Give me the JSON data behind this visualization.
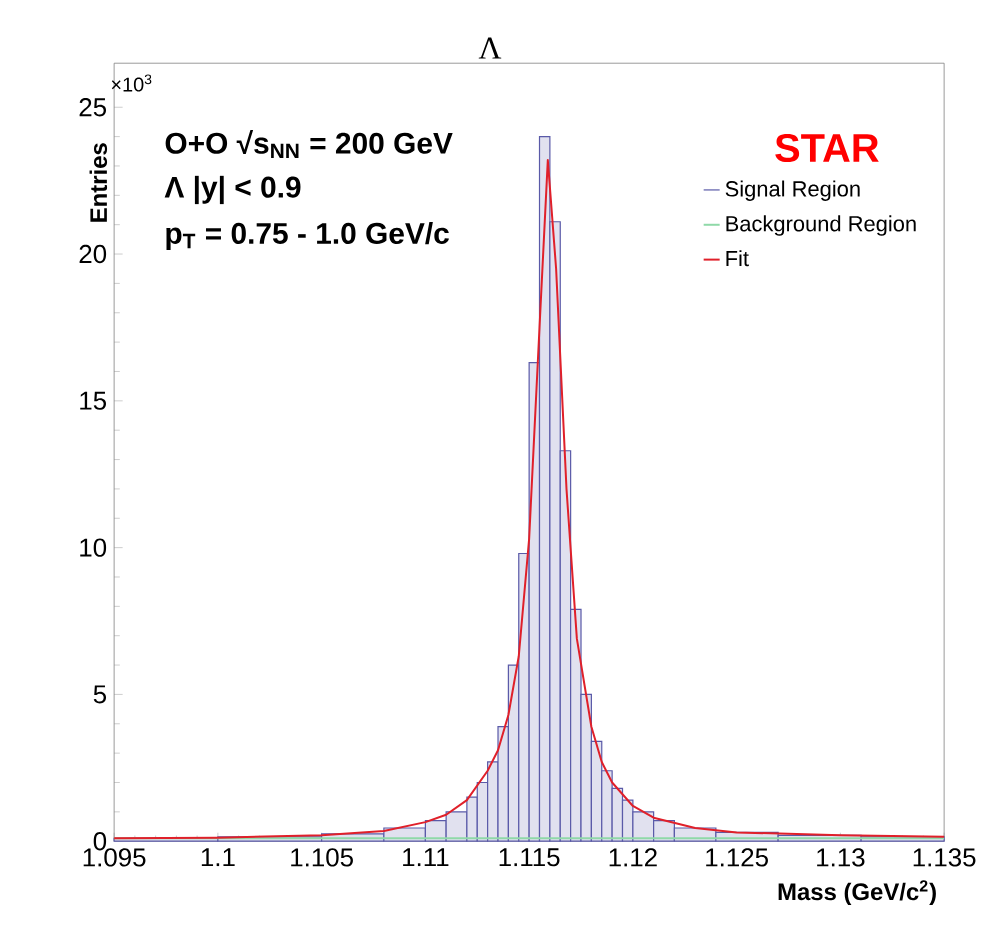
{
  "chart_data": {
    "type": "histogram",
    "title": "Λ",
    "xlabel": "Mass (GeV/c$^{2}$)",
    "ylabel": "Entries",
    "annotations": [
      "×10$^{3}$",
      "**O+O  √s$_{NN}$ = 200 GeV**",
      "**Λ |y| < 0.9**",
      "**p$_{T}$ = 0.75 - 1.0 GeV/c**",
      "STAR"
    ],
    "xlim": [
      1.095,
      1.135
    ],
    "xticks": [
      1.095,
      1.1,
      1.105,
      1.11,
      1.115,
      1.12,
      1.125,
      1.13,
      1.135
    ],
    "ylim": [
      0,
      26.5
    ],
    "yticks": [
      0,
      5,
      10,
      15,
      20,
      25
    ],
    "legend": "top right",
    "series": [
      {
        "name": "Signal Region",
        "color": "#5a5aa8",
        "bins": [
          1.095,
          1.1,
          1.105,
          1.108,
          1.11,
          1.111,
          1.112,
          1.1125,
          1.113,
          1.1135,
          1.114,
          1.1145,
          1.115,
          1.1155,
          1.116,
          1.1165,
          1.117,
          1.1175,
          1.118,
          1.1185,
          1.119,
          1.1195,
          1.12,
          1.121,
          1.122,
          1.124,
          1.127,
          1.131,
          1.135
        ],
        "values": [
          0.1,
          0.15,
          0.25,
          0.45,
          0.7,
          1.0,
          1.5,
          2.0,
          2.7,
          3.9,
          6.0,
          9.8,
          16.3,
          24.0,
          21.1,
          13.3,
          7.9,
          5.0,
          3.4,
          2.4,
          1.8,
          1.4,
          1.0,
          0.7,
          0.45,
          0.3,
          0.2,
          0.15
        ]
      },
      {
        "name": "Background Region",
        "type": "line",
        "color": "#8fd9a8",
        "x": [
          1.095,
          1.105,
          1.115,
          1.125,
          1.135
        ],
        "values": [
          0.1,
          0.1,
          0.1,
          0.1,
          0.1
        ]
      },
      {
        "name": "Fit",
        "type": "line",
        "color": "#e0202a",
        "x": [
          1.095,
          1.1,
          1.105,
          1.108,
          1.11,
          1.111,
          1.112,
          1.113,
          1.1135,
          1.114,
          1.1145,
          1.115,
          1.1155,
          1.1159,
          1.1163,
          1.1168,
          1.1173,
          1.118,
          1.1185,
          1.119,
          1.12,
          1.121,
          1.123,
          1.125,
          1.13,
          1.135
        ],
        "values": [
          0.1,
          0.12,
          0.2,
          0.35,
          0.65,
          0.9,
          1.4,
          2.4,
          3.1,
          4.3,
          6.3,
          10.3,
          17.5,
          23.2,
          19.5,
          12.0,
          6.9,
          3.9,
          2.7,
          2.0,
          1.2,
          0.8,
          0.45,
          0.3,
          0.2,
          0.15
        ]
      }
    ]
  }
}
